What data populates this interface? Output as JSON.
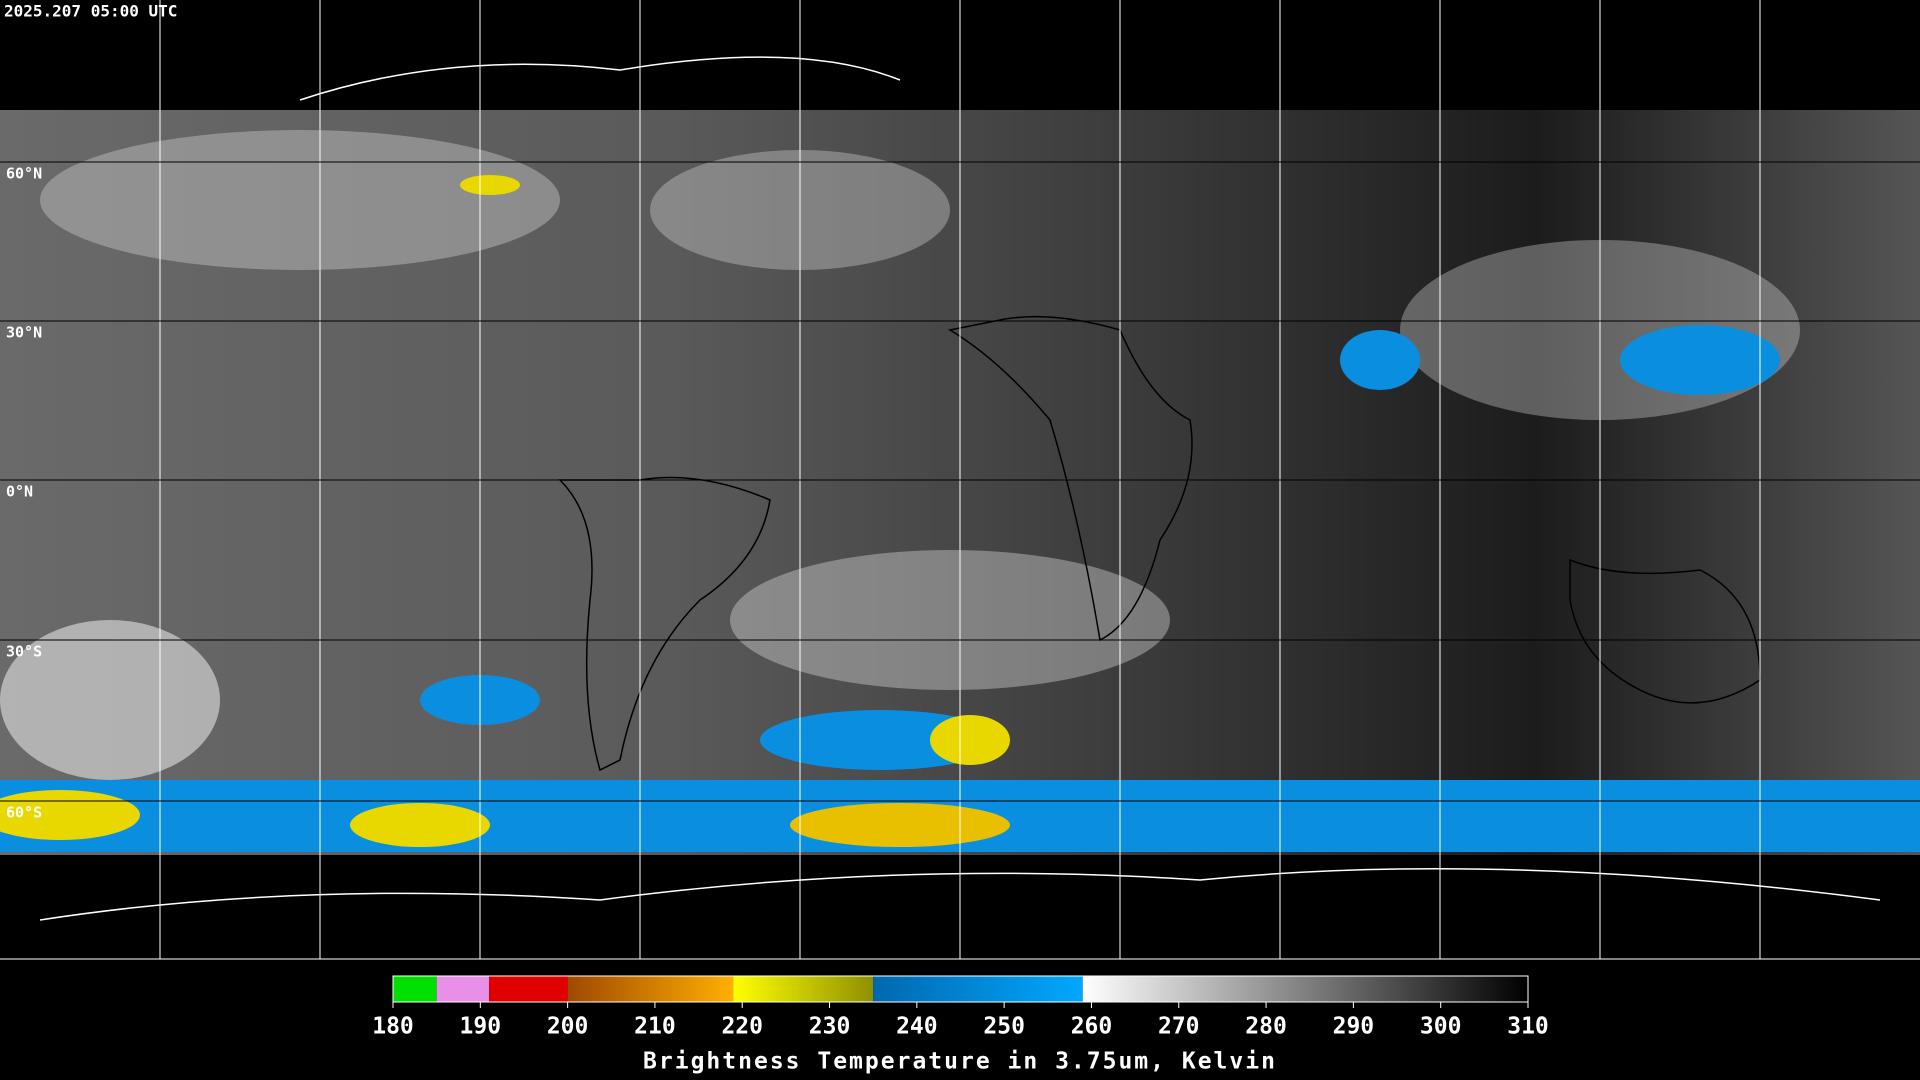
{
  "header": {
    "timestamp": "2025.207 05:00 UTC"
  },
  "map": {
    "lat_labels": [
      "60°N",
      "30°N",
      "0°N",
      "30°S",
      "60°S"
    ]
  },
  "colorbar": {
    "title": "Brightness Temperature in 3.75um, Kelvin",
    "range": [
      180,
      310
    ],
    "ticks": [
      180,
      190,
      200,
      210,
      220,
      230,
      240,
      250,
      260,
      270,
      280,
      290,
      300,
      310
    ],
    "segments": [
      {
        "from": 180,
        "to": 185,
        "colors": [
          "#00e000",
          "#00e000"
        ]
      },
      {
        "from": 185,
        "to": 191,
        "colors": [
          "#e890e8",
          "#e890e8"
        ]
      },
      {
        "from": 191,
        "to": 200,
        "colors": [
          "#e00000",
          "#e00000"
        ]
      },
      {
        "from": 200,
        "to": 219,
        "colors": [
          "#a04800",
          "#ffb000"
        ]
      },
      {
        "from": 219,
        "to": 235,
        "colors": [
          "#ffff00",
          "#909000"
        ]
      },
      {
        "from": 235,
        "to": 259,
        "colors": [
          "#0068b0",
          "#00a8ff"
        ]
      },
      {
        "from": 259,
        "to": 310,
        "colors": [
          "#ffffff",
          "#000000"
        ]
      }
    ]
  }
}
